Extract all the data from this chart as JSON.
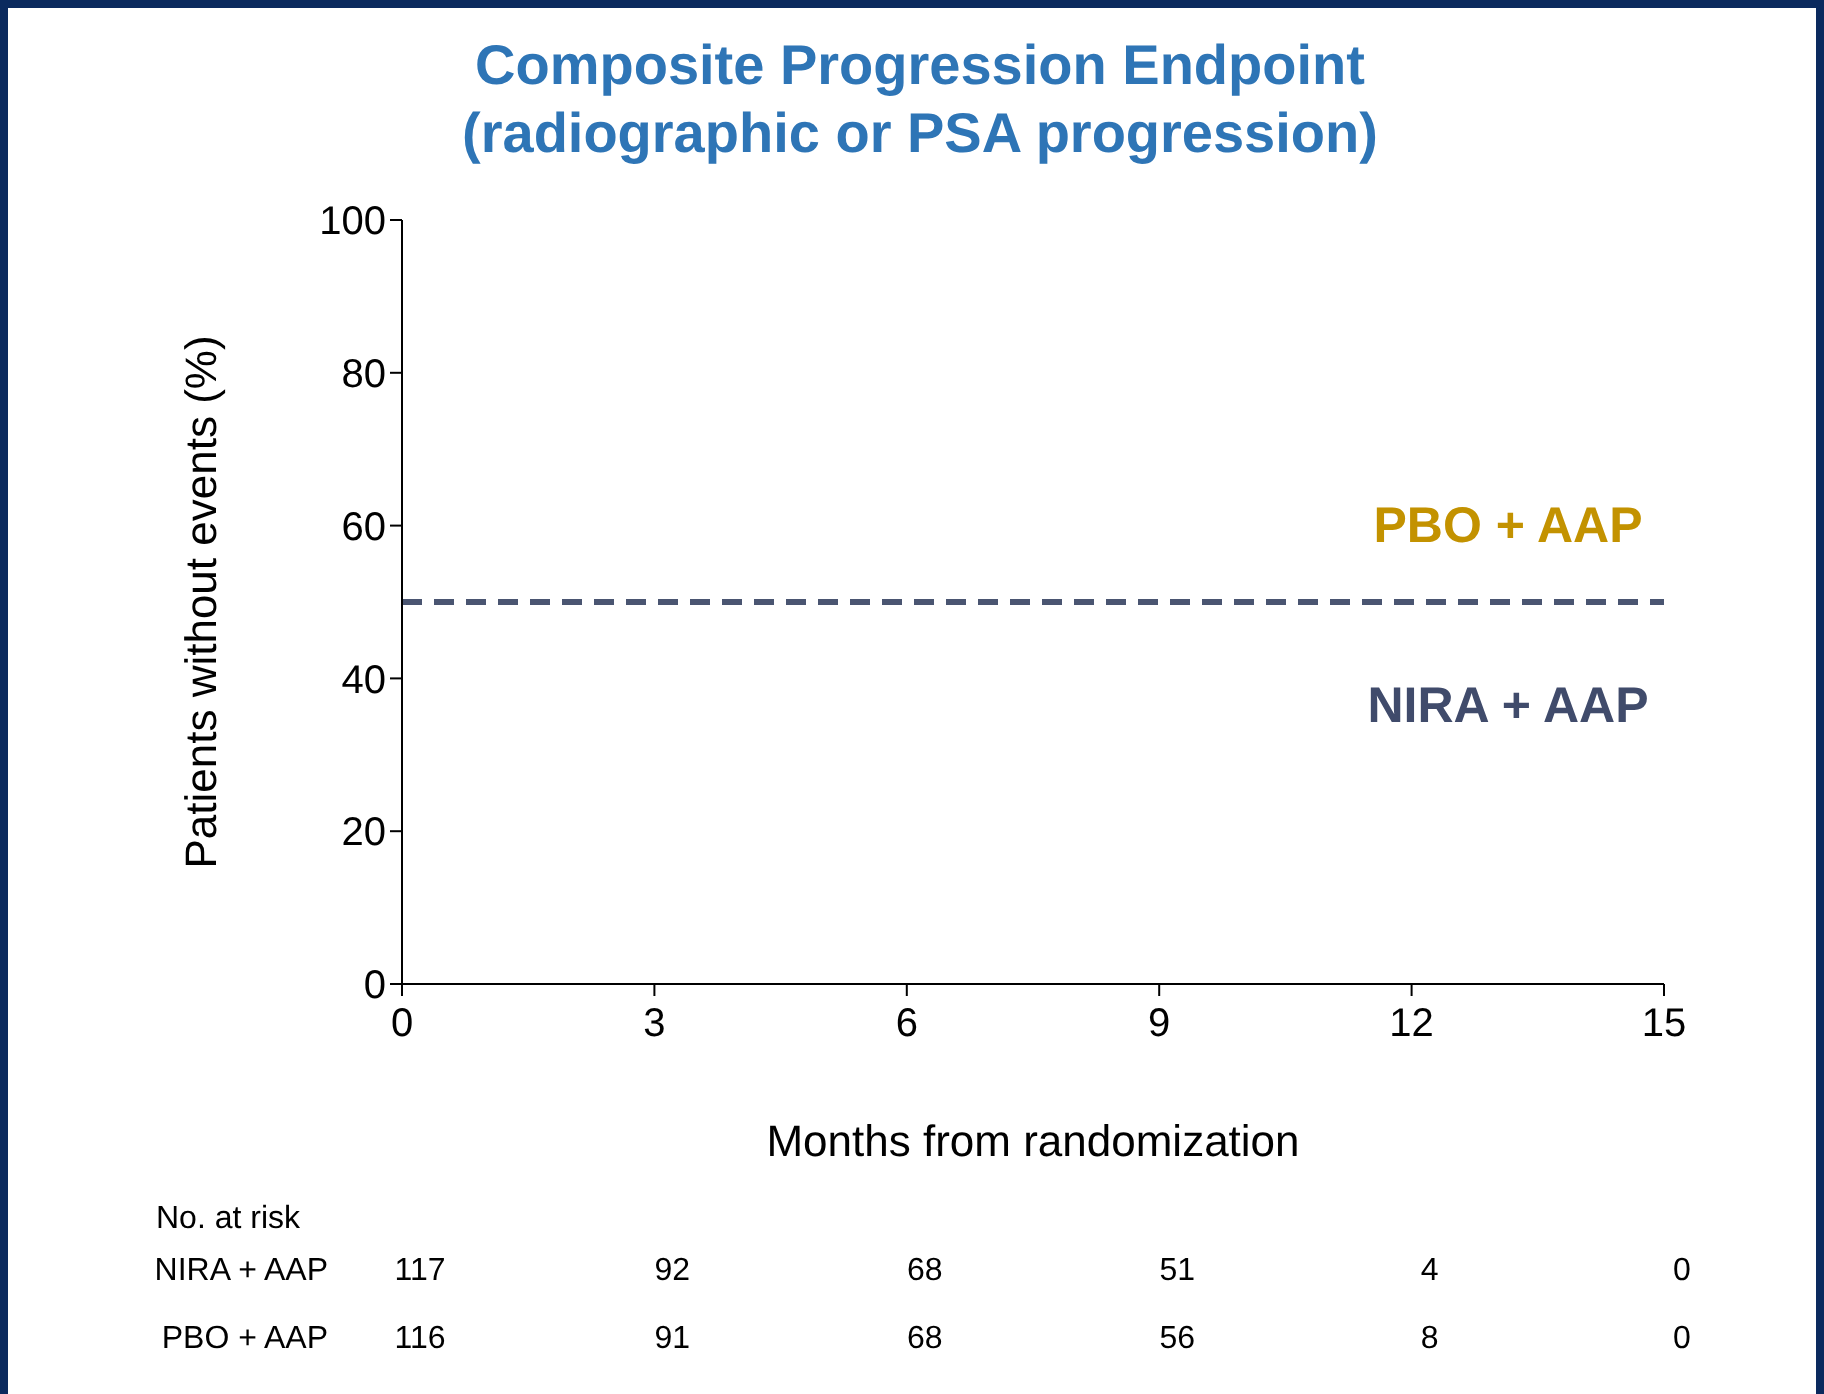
{
  "chart_data": {
    "type": "line",
    "title": "Composite Progression Endpoint\n(radiographic or PSA progression)",
    "xlabel": "Months from randomization",
    "ylabel": "Patients without events (%)",
    "categories": [
      "0",
      "3",
      "6",
      "9",
      "12",
      "15"
    ],
    "ylim": [
      0,
      100
    ],
    "yticks": [
      0,
      20,
      40,
      60,
      80,
      100
    ],
    "series": [
      {
        "name": "NIRA + AAP",
        "color": "#404b6b",
        "values": [
          null,
          null,
          null,
          null,
          null,
          null
        ]
      },
      {
        "name": "PBO + AAP",
        "color": "#c39200",
        "values": [
          null,
          null,
          null,
          null,
          null,
          null
        ]
      }
    ],
    "ref_lines": [
      {
        "axis": "y",
        "value": 50,
        "color": "#4a5571",
        "line_style": "dashed"
      }
    ],
    "annotations": [
      "No. at risk",
      "117",
      "92",
      "68",
      "51",
      "4",
      "0",
      "116",
      "91",
      "68",
      "56",
      "8",
      "0"
    ]
  }
}
